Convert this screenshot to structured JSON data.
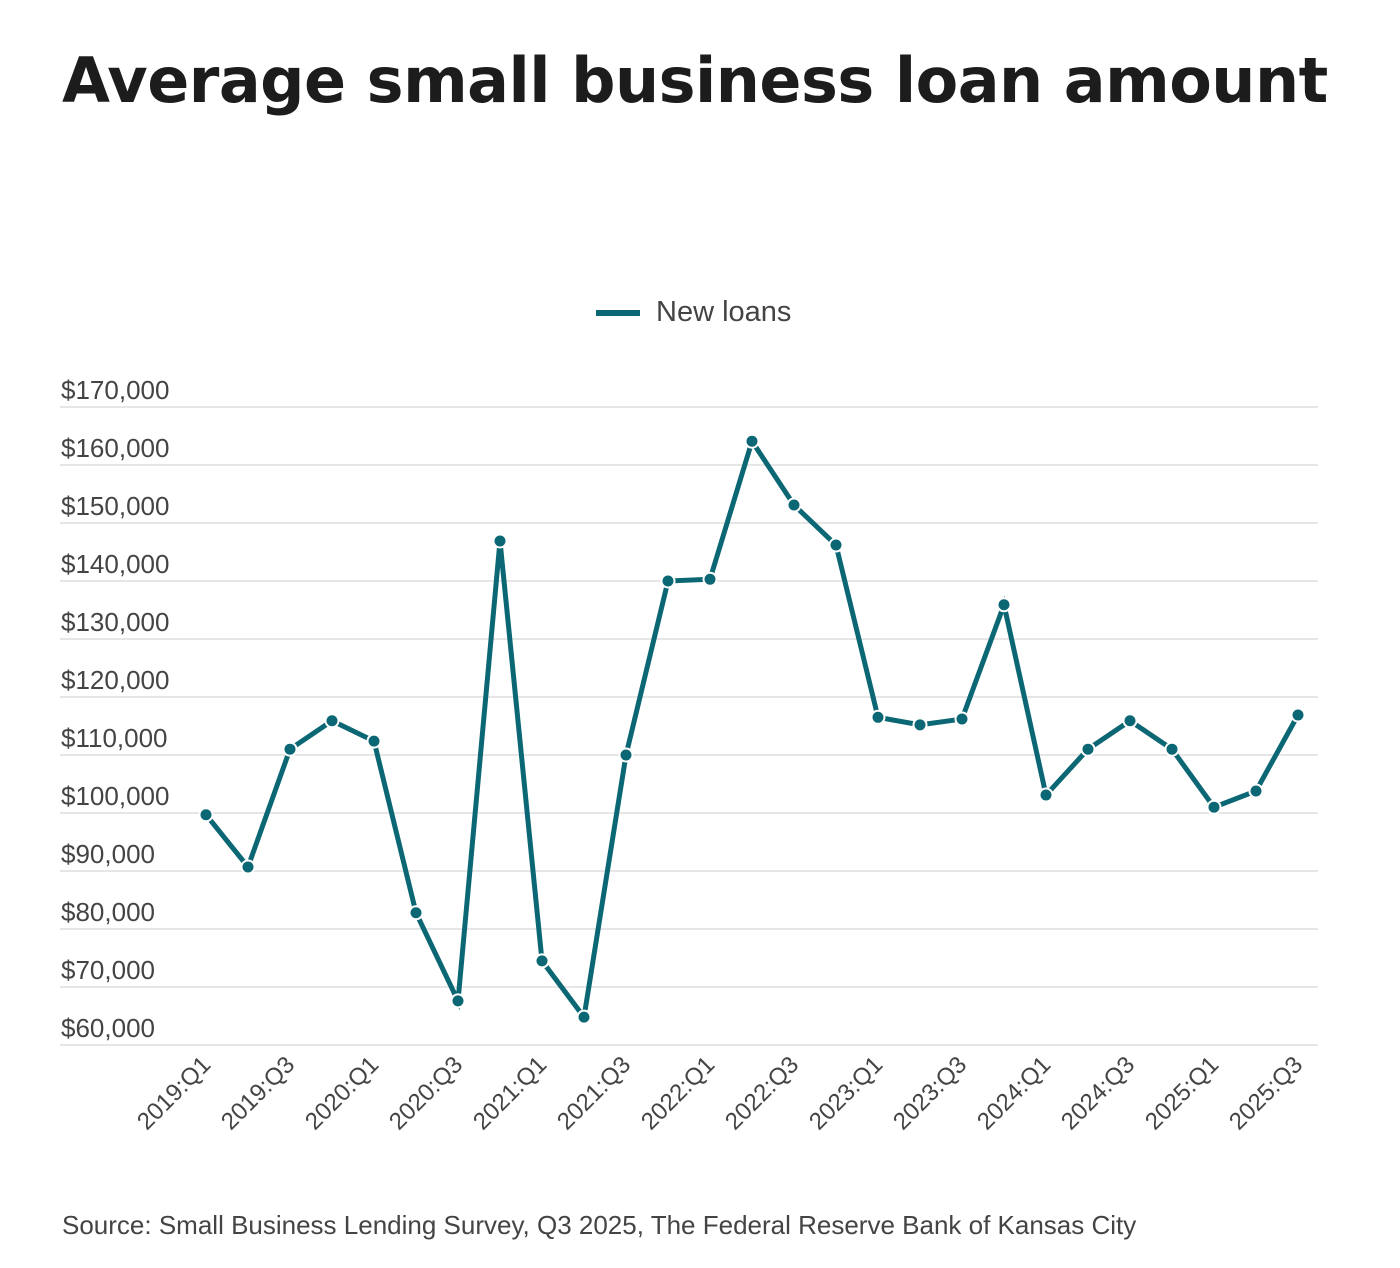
{
  "title": "Average small business loan amount",
  "legend": {
    "label": "New loans",
    "color": "#0c6774"
  },
  "source": "Source: Small Business Lending Survey, Q3 2025, The Federal Reserve Bank of Kansas City",
  "chart_data": {
    "type": "line",
    "title": "Average small business loan amount",
    "xlabel": "",
    "ylabel": "",
    "ylim": [
      60000,
      170000
    ],
    "grid": true,
    "legend_position": "top-center",
    "y_ticks": [
      "$60,000",
      "$70,000",
      "$80,000",
      "$90,000",
      "$100,000",
      "$110,000",
      "$120,000",
      "$130,000",
      "$140,000",
      "$150,000",
      "$160,000",
      "$170,000"
    ],
    "x_tick_labels": [
      "2019:Q1",
      "2019:Q3",
      "2020:Q1",
      "2020:Q3",
      "2021:Q1",
      "2021:Q3",
      "2022:Q1",
      "2022:Q3",
      "2023:Q1",
      "2023:Q3",
      "2024:Q1",
      "2024:Q3",
      "2025:Q1",
      "2025:Q3"
    ],
    "categories": [
      "2019:Q1",
      "2019:Q2",
      "2019:Q3",
      "2019:Q4",
      "2020:Q1",
      "2020:Q2",
      "2020:Q3",
      "2020:Q4",
      "2021:Q1",
      "2021:Q2",
      "2021:Q3",
      "2021:Q4",
      "2022:Q1",
      "2022:Q2",
      "2022:Q3",
      "2022:Q4",
      "2023:Q1",
      "2023:Q2",
      "2023:Q3",
      "2023:Q4",
      "2024:Q1",
      "2024:Q2",
      "2024:Q3",
      "2024:Q4",
      "2025:Q1",
      "2025:Q2",
      "2025:Q3"
    ],
    "series": [
      {
        "name": "New loans",
        "color": "#0c6774",
        "values": [
          99700,
          90700,
          111000,
          115900,
          112400,
          82800,
          67600,
          146900,
          74500,
          64800,
          110000,
          140000,
          140300,
          164100,
          153100,
          146200,
          116500,
          115200,
          116200,
          135900,
          103100,
          111000,
          115900,
          111000,
          101000,
          103800,
          116900
        ]
      }
    ]
  }
}
